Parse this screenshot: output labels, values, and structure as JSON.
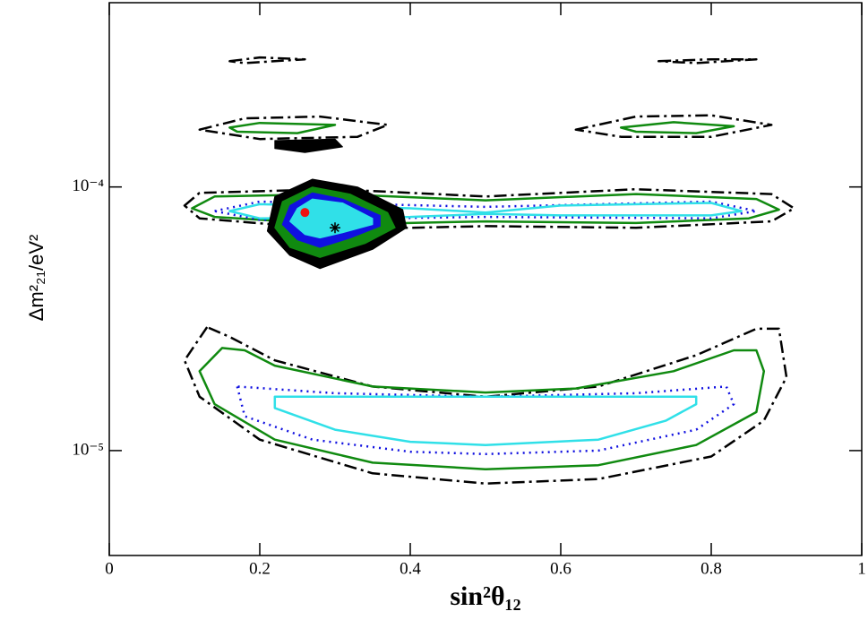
{
  "chart_data": {
    "type": "contour",
    "xlabel": "sin²θ₁₂",
    "ylabel": "Δm²₂₁/eV²",
    "xlim": [
      0,
      1
    ],
    "xticks": [
      0,
      0.2,
      0.4,
      0.6,
      0.8,
      1
    ],
    "ylim": [
      4e-06,
      0.0005
    ],
    "log_y": true,
    "yticks": [
      {
        "value": 0.0001,
        "label": "10⁻⁴"
      },
      {
        "value": 1e-05,
        "label": "10⁻⁵"
      }
    ],
    "contours": [
      {
        "color": "#000000",
        "style": "dashdot",
        "filled": false,
        "x": [
          0.13,
          0.1,
          0.12,
          0.2,
          0.35,
          0.5,
          0.65,
          0.8,
          0.87,
          0.9,
          0.89,
          0.86,
          0.78,
          0.65,
          0.5,
          0.35,
          0.22,
          0.16
        ],
        "y": [
          2.94e-05,
          2.2e-05,
          1.6e-05,
          1.1e-05,
          8.2e-06,
          7.5e-06,
          7.8e-06,
          9.5e-06,
          1.3e-05,
          1.9e-05,
          2.9e-05,
          2.9e-05,
          2.3e-05,
          1.75e-05,
          1.6e-05,
          1.75e-05,
          2.2e-05,
          2.7e-05
        ]
      },
      {
        "color": "#108a10",
        "style": "solid",
        "filled": false,
        "x": [
          0.15,
          0.12,
          0.14,
          0.22,
          0.35,
          0.5,
          0.65,
          0.78,
          0.86,
          0.87,
          0.86,
          0.83,
          0.75,
          0.62,
          0.5,
          0.35,
          0.22,
          0.18
        ],
        "y": [
          2.45e-05,
          2e-05,
          1.5e-05,
          1.1e-05,
          9e-06,
          8.5e-06,
          8.8e-06,
          1.05e-05,
          1.4e-05,
          2e-05,
          2.4e-05,
          2.4e-05,
          2e-05,
          1.72e-05,
          1.66e-05,
          1.75e-05,
          2.1e-05,
          2.4e-05
        ]
      },
      {
        "color": "#1010e0",
        "style": "dotted",
        "filled": false,
        "x": [
          0.17,
          0.18,
          0.27,
          0.4,
          0.5,
          0.65,
          0.78,
          0.83,
          0.82,
          0.7,
          0.5,
          0.3
        ],
        "y": [
          1.75e-05,
          1.35e-05,
          1.1e-05,
          9.9e-06,
          9.7e-06,
          1e-05,
          1.2e-05,
          1.5e-05,
          1.75e-05,
          1.65e-05,
          1.6e-05,
          1.65e-05
        ]
      },
      {
        "color": "#30e0e8",
        "style": "solid",
        "filled": false,
        "x": [
          0.22,
          0.22,
          0.3,
          0.4,
          0.5,
          0.65,
          0.74,
          0.78,
          0.78,
          0.5
        ],
        "y": [
          1.6e-05,
          1.45e-05,
          1.2e-05,
          1.08e-05,
          1.05e-05,
          1.1e-05,
          1.3e-05,
          1.5e-05,
          1.6e-05,
          1.6e-05
        ]
      },
      {
        "color": "#000000",
        "style": "dashdot",
        "filled": false,
        "x": [
          0.1,
          0.12,
          0.3,
          0.5,
          0.7,
          0.88,
          0.91,
          0.88,
          0.7,
          0.5,
          0.3,
          0.12
        ],
        "y": [
          8.5e-05,
          9.5e-05,
          9.8e-05,
          9.2e-05,
          9.8e-05,
          9.4e-05,
          8.3e-05,
          7.4e-05,
          7e-05,
          7.1e-05,
          6.9e-05,
          7.6e-05
        ]
      },
      {
        "color": "#108a10",
        "style": "solid",
        "filled": false,
        "x": [
          0.11,
          0.14,
          0.3,
          0.5,
          0.7,
          0.86,
          0.89,
          0.85,
          0.7,
          0.5,
          0.3,
          0.14
        ],
        "y": [
          8.3e-05,
          9.2e-05,
          9.4e-05,
          8.9e-05,
          9.4e-05,
          9e-05,
          8.2e-05,
          7.6e-05,
          7.3e-05,
          7.4e-05,
          7.2e-05,
          7.7e-05
        ]
      },
      {
        "color": "#1010e0",
        "style": "dotted",
        "filled": false,
        "x": [
          0.14,
          0.2,
          0.5,
          0.8,
          0.86,
          0.8,
          0.5,
          0.2
        ],
        "y": [
          8.1e-05,
          8.8e-05,
          8.4e-05,
          8.8e-05,
          8.1e-05,
          7.6e-05,
          7.7e-05,
          7.5e-05
        ]
      },
      {
        "color": "#30e0e8",
        "style": "solid",
        "filled": false,
        "x": [
          0.16,
          0.2,
          0.4,
          0.5,
          0.6,
          0.8,
          0.84,
          0.8,
          0.6,
          0.5,
          0.4,
          0.2
        ],
        "y": [
          8.1e-05,
          8.6e-05,
          8.3e-05,
          8e-05,
          8.5e-05,
          8.7e-05,
          8.1e-05,
          7.8e-05,
          7.8e-05,
          7.9e-05,
          7.7e-05,
          7.6e-05
        ]
      },
      {
        "color": "#000000",
        "style": "solid",
        "filled": true,
        "x": [
          0.22,
          0.27,
          0.33,
          0.39,
          0.395,
          0.35,
          0.28,
          0.24,
          0.21
        ],
        "y": [
          9.2e-05,
          0.000107,
          0.0001,
          8.2e-05,
          7e-05,
          5.8e-05,
          4.9e-05,
          5.5e-05,
          6.8e-05
        ]
      },
      {
        "color": "#108a10",
        "style": "solid",
        "filled": true,
        "x": [
          0.23,
          0.27,
          0.32,
          0.37,
          0.38,
          0.34,
          0.28,
          0.24,
          0.22
        ],
        "y": [
          8.8e-05,
          0.0001,
          9.4e-05,
          8e-05,
          7e-05,
          6.1e-05,
          5.4e-05,
          5.9e-05,
          7e-05
        ]
      },
      {
        "color": "#1010e0",
        "style": "solid",
        "filled": true,
        "x": [
          0.24,
          0.27,
          0.31,
          0.36,
          0.36,
          0.32,
          0.28,
          0.25,
          0.23
        ],
        "y": [
          8.5e-05,
          9.5e-05,
          9e-05,
          7.8e-05,
          7.1e-05,
          6.4e-05,
          5.9e-05,
          6.3e-05,
          7.2e-05
        ]
      },
      {
        "color": "#30e0e8",
        "style": "solid",
        "filled": true,
        "x": [
          0.25,
          0.27,
          0.31,
          0.35,
          0.35,
          0.31,
          0.28,
          0.26,
          0.24
        ],
        "y": [
          8.3e-05,
          9e-05,
          8.7e-05,
          7.6e-05,
          7.2e-05,
          6.7e-05,
          6.4e-05,
          6.6e-05,
          7.4e-05
        ]
      },
      {
        "color": "#000000",
        "style": "solid",
        "filled": true,
        "x": [
          0.22,
          0.3,
          0.31,
          0.26,
          0.22
        ],
        "y": [
          0.00015,
          0.000152,
          0.000142,
          0.000135,
          0.00014
        ]
      },
      {
        "color": "#000000",
        "style": "dashdot",
        "filled": false,
        "x": [
          0.12,
          0.18,
          0.28,
          0.37,
          0.33,
          0.2
        ],
        "y": [
          0.000165,
          0.000182,
          0.000185,
          0.000172,
          0.000155,
          0.000152
        ]
      },
      {
        "color": "#108a10",
        "style": "solid",
        "filled": false,
        "x": [
          0.16,
          0.2,
          0.3,
          0.25,
          0.17
        ],
        "y": [
          0.000168,
          0.000175,
          0.000172,
          0.00016,
          0.000162
        ]
      },
      {
        "color": "#000000",
        "style": "dashdot",
        "filled": false,
        "x": [
          0.62,
          0.7,
          0.8,
          0.88,
          0.8,
          0.68
        ],
        "y": [
          0.000165,
          0.000185,
          0.000187,
          0.000172,
          0.000155,
          0.000155
        ]
      },
      {
        "color": "#108a10",
        "style": "solid",
        "filled": false,
        "x": [
          0.68,
          0.75,
          0.83,
          0.78,
          0.7
        ],
        "y": [
          0.000168,
          0.000176,
          0.00017,
          0.00016,
          0.000162
        ]
      },
      {
        "color": "#000000",
        "style": "dashdot",
        "filled": false,
        "x": [
          0.16,
          0.2,
          0.26,
          0.18
        ],
        "y": [
          0.0003,
          0.00031,
          0.000305,
          0.000295
        ]
      },
      {
        "color": "#000000",
        "style": "dashdot",
        "filled": false,
        "x": [
          0.73,
          0.8,
          0.86,
          0.78
        ],
        "y": [
          0.0003,
          0.000305,
          0.000305,
          0.000295
        ]
      }
    ],
    "points": [
      {
        "color": "#ee1111",
        "marker": "dot",
        "x": 0.26,
        "y": 8e-05
      },
      {
        "color": "#000000",
        "marker": "star",
        "x": 0.3,
        "y": 7e-05
      }
    ]
  }
}
